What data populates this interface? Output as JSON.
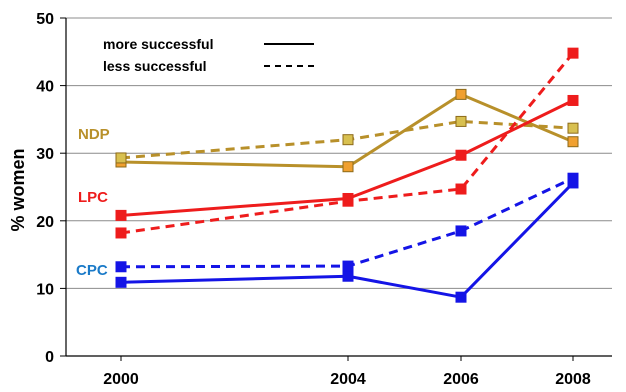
{
  "chart_data": {
    "type": "line",
    "title": "",
    "xlabel": "",
    "ylabel": "% women",
    "x": [
      2000,
      2004,
      2006,
      2008
    ],
    "ylim": [
      0,
      50
    ],
    "yticks": [
      0,
      10,
      20,
      30,
      40,
      50
    ],
    "xticks": [
      2000,
      2004,
      2006,
      2008
    ],
    "grid": "horizontal",
    "legend": {
      "placement": "top-left",
      "entries": [
        {
          "label": "more successful",
          "style": "solid"
        },
        {
          "label": "less successful",
          "style": "dashed"
        }
      ]
    },
    "series": [
      {
        "name": "NDP",
        "style": "solid",
        "color": "#B8902A",
        "values": [
          28.7,
          28.0,
          38.7,
          31.7
        ]
      },
      {
        "name": "NDP",
        "style": "dashed",
        "color": "#B8902A",
        "values": [
          29.3,
          32.0,
          34.7,
          33.7
        ]
      },
      {
        "name": "LPC",
        "style": "solid",
        "color": "#EE1C1C",
        "values": [
          20.8,
          23.3,
          29.7,
          37.8
        ]
      },
      {
        "name": "LPC",
        "style": "dashed",
        "color": "#EE1C1C",
        "values": [
          18.2,
          22.9,
          24.7,
          44.8
        ]
      },
      {
        "name": "CPC",
        "style": "solid",
        "color": "#1414E6",
        "values": [
          10.9,
          11.8,
          8.7,
          25.6
        ]
      },
      {
        "name": "CPC",
        "style": "dashed",
        "color": "#1414E6",
        "values": [
          13.2,
          13.3,
          18.5,
          26.3
        ]
      }
    ],
    "annotations": [
      {
        "text": "NDP",
        "color": "#B8902A"
      },
      {
        "text": "LPC",
        "color": "#EE1C1C"
      },
      {
        "text": "CPC",
        "color": "#1A7AC8"
      }
    ]
  }
}
